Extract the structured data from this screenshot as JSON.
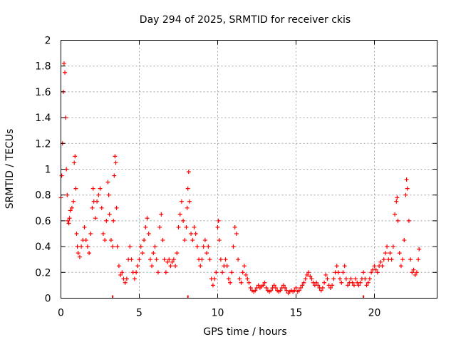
{
  "chart_data": {
    "type": "scatter",
    "title": "Day 294 of 2025, SRMTID for receiver ckis",
    "xlabel": "GPS time / hours",
    "ylabel": "SRMTID / TECUs",
    "xlim": [
      0,
      24
    ],
    "ylim": [
      0,
      2
    ],
    "xticks": [
      0,
      5,
      10,
      15,
      20
    ],
    "yticks": [
      0,
      0.2,
      0.4,
      0.6,
      0.8,
      1,
      1.2,
      1.4,
      1.6,
      1.8,
      2
    ],
    "xtick_labels": [
      "0",
      "5",
      "10",
      "15",
      "20"
    ],
    "ytick_labels": [
      "0",
      "0.2",
      "0.4",
      "0.6",
      "0.8",
      "1",
      "1.2",
      "1.4",
      "1.6",
      "1.8",
      "2"
    ],
    "grid": true,
    "marker": "+",
    "color": "#ff0000",
    "series": [
      {
        "name": "ckis",
        "points": [
          [
            0.0,
            0.78
          ],
          [
            0.05,
            0.95
          ],
          [
            0.1,
            1.2
          ],
          [
            0.15,
            1.6
          ],
          [
            0.2,
            1.82
          ],
          [
            0.25,
            1.75
          ],
          [
            0.3,
            1.4
          ],
          [
            0.35,
            1.0
          ],
          [
            0.4,
            0.8
          ],
          [
            0.45,
            0.6
          ],
          [
            0.5,
            0.58
          ],
          [
            0.55,
            0.62
          ],
          [
            0.6,
            0.68
          ],
          [
            0.7,
            0.7
          ],
          [
            0.8,
            0.75
          ],
          [
            0.85,
            1.05
          ],
          [
            0.9,
            1.1
          ],
          [
            0.95,
            0.85
          ],
          [
            1.0,
            0.5
          ],
          [
            1.05,
            0.4
          ],
          [
            1.1,
            0.35
          ],
          [
            1.2,
            0.32
          ],
          [
            1.3,
            0.4
          ],
          [
            1.4,
            0.45
          ],
          [
            1.5,
            0.55
          ],
          [
            1.6,
            0.45
          ],
          [
            1.7,
            0.4
          ],
          [
            1.8,
            0.35
          ],
          [
            1.9,
            0.5
          ],
          [
            2.0,
            0.7
          ],
          [
            2.05,
            0.85
          ],
          [
            2.1,
            0.75
          ],
          [
            2.2,
            0.62
          ],
          [
            2.3,
            0.75
          ],
          [
            2.4,
            0.8
          ],
          [
            2.5,
            0.85
          ],
          [
            2.6,
            0.7
          ],
          [
            2.7,
            0.5
          ],
          [
            2.8,
            0.45
          ],
          [
            2.9,
            0.6
          ],
          [
            3.0,
            0.9
          ],
          [
            3.05,
            0.8
          ],
          [
            3.1,
            0.65
          ],
          [
            3.2,
            0.45
          ],
          [
            3.3,
            0.4
          ],
          [
            3.35,
            0.6
          ],
          [
            3.4,
            0.95
          ],
          [
            3.45,
            1.1
          ],
          [
            3.5,
            1.05
          ],
          [
            3.55,
            0.7
          ],
          [
            3.6,
            0.4
          ],
          [
            3.7,
            0.25
          ],
          [
            3.8,
            0.18
          ],
          [
            3.9,
            0.2
          ],
          [
            4.0,
            0.15
          ],
          [
            4.1,
            0.12
          ],
          [
            4.2,
            0.15
          ],
          [
            4.3,
            0.3
          ],
          [
            4.4,
            0.4
          ],
          [
            4.5,
            0.3
          ],
          [
            4.6,
            0.2
          ],
          [
            4.7,
            0.15
          ],
          [
            4.8,
            0.2
          ],
          [
            4.9,
            0.25
          ],
          [
            5.0,
            0.3
          ],
          [
            5.1,
            0.4
          ],
          [
            5.2,
            0.35
          ],
          [
            5.3,
            0.45
          ],
          [
            5.4,
            0.55
          ],
          [
            5.5,
            0.62
          ],
          [
            5.6,
            0.5
          ],
          [
            5.7,
            0.3
          ],
          [
            5.8,
            0.25
          ],
          [
            5.9,
            0.35
          ],
          [
            6.0,
            0.4
          ],
          [
            6.1,
            0.3
          ],
          [
            6.2,
            0.2
          ],
          [
            6.3,
            0.55
          ],
          [
            6.4,
            0.65
          ],
          [
            6.5,
            0.45
          ],
          [
            6.6,
            0.3
          ],
          [
            6.7,
            0.2
          ],
          [
            6.8,
            0.28
          ],
          [
            6.9,
            0.3
          ],
          [
            7.0,
            0.25
          ],
          [
            7.1,
            0.28
          ],
          [
            7.2,
            0.3
          ],
          [
            7.3,
            0.25
          ],
          [
            7.4,
            0.35
          ],
          [
            7.5,
            0.55
          ],
          [
            7.6,
            0.65
          ],
          [
            7.7,
            0.75
          ],
          [
            7.8,
            0.6
          ],
          [
            7.9,
            0.45
          ],
          [
            8.0,
            0.55
          ],
          [
            8.05,
            0.7
          ],
          [
            8.1,
            0.85
          ],
          [
            8.15,
            0.98
          ],
          [
            8.2,
            0.75
          ],
          [
            8.3,
            0.5
          ],
          [
            8.4,
            0.45
          ],
          [
            8.5,
            0.55
          ],
          [
            8.6,
            0.5
          ],
          [
            8.7,
            0.4
          ],
          [
            8.8,
            0.3
          ],
          [
            8.9,
            0.25
          ],
          [
            9.0,
            0.3
          ],
          [
            9.1,
            0.4
          ],
          [
            9.2,
            0.45
          ],
          [
            9.3,
            0.35
          ],
          [
            9.4,
            0.4
          ],
          [
            9.5,
            0.3
          ],
          [
            9.6,
            0.15
          ],
          [
            9.7,
            0.1
          ],
          [
            9.8,
            0.15
          ],
          [
            9.9,
            0.2
          ],
          [
            10.0,
            0.55
          ],
          [
            10.05,
            0.6
          ],
          [
            10.1,
            0.45
          ],
          [
            10.2,
            0.3
          ],
          [
            10.3,
            0.2
          ],
          [
            10.4,
            0.25
          ],
          [
            10.5,
            0.3
          ],
          [
            10.6,
            0.25
          ],
          [
            10.7,
            0.15
          ],
          [
            10.8,
            0.12
          ],
          [
            10.9,
            0.2
          ],
          [
            11.0,
            0.4
          ],
          [
            11.1,
            0.55
          ],
          [
            11.2,
            0.5
          ],
          [
            11.3,
            0.3
          ],
          [
            11.4,
            0.15
          ],
          [
            11.5,
            0.12
          ],
          [
            11.6,
            0.2
          ],
          [
            11.7,
            0.25
          ],
          [
            11.8,
            0.18
          ],
          [
            11.9,
            0.15
          ],
          [
            12.0,
            0.12
          ],
          [
            12.1,
            0.08
          ],
          [
            12.2,
            0.06
          ],
          [
            12.3,
            0.05
          ],
          [
            12.4,
            0.06
          ],
          [
            12.5,
            0.08
          ],
          [
            12.6,
            0.1
          ],
          [
            12.7,
            0.08
          ],
          [
            12.8,
            0.09
          ],
          [
            12.9,
            0.1
          ],
          [
            13.0,
            0.12
          ],
          [
            13.1,
            0.08
          ],
          [
            13.2,
            0.06
          ],
          [
            13.3,
            0.05
          ],
          [
            13.4,
            0.06
          ],
          [
            13.5,
            0.08
          ],
          [
            13.6,
            0.1
          ],
          [
            13.7,
            0.08
          ],
          [
            13.8,
            0.06
          ],
          [
            13.9,
            0.05
          ],
          [
            14.0,
            0.06
          ],
          [
            14.1,
            0.08
          ],
          [
            14.2,
            0.1
          ],
          [
            14.3,
            0.08
          ],
          [
            14.4,
            0.06
          ],
          [
            14.5,
            0.04
          ],
          [
            14.6,
            0.05
          ],
          [
            14.7,
            0.06
          ],
          [
            14.8,
            0.05
          ],
          [
            14.9,
            0.06
          ],
          [
            15.0,
            0.08
          ],
          [
            15.1,
            0.05
          ],
          [
            15.2,
            0.06
          ],
          [
            15.3,
            0.08
          ],
          [
            15.4,
            0.1
          ],
          [
            15.5,
            0.12
          ],
          [
            15.6,
            0.15
          ],
          [
            15.7,
            0.18
          ],
          [
            15.8,
            0.2
          ],
          [
            15.9,
            0.17
          ],
          [
            16.0,
            0.15
          ],
          [
            16.1,
            0.12
          ],
          [
            16.2,
            0.1
          ],
          [
            16.3,
            0.12
          ],
          [
            16.4,
            0.1
          ],
          [
            16.5,
            0.08
          ],
          [
            16.6,
            0.06
          ],
          [
            16.7,
            0.08
          ],
          [
            16.8,
            0.12
          ],
          [
            16.9,
            0.18
          ],
          [
            17.0,
            0.15
          ],
          [
            17.1,
            0.1
          ],
          [
            17.2,
            0.08
          ],
          [
            17.3,
            0.1
          ],
          [
            17.4,
            0.15
          ],
          [
            17.5,
            0.2
          ],
          [
            17.6,
            0.25
          ],
          [
            17.7,
            0.2
          ],
          [
            17.8,
            0.15
          ],
          [
            17.9,
            0.12
          ],
          [
            18.0,
            0.2
          ],
          [
            18.1,
            0.25
          ],
          [
            18.2,
            0.15
          ],
          [
            18.3,
            0.1
          ],
          [
            18.4,
            0.12
          ],
          [
            18.5,
            0.15
          ],
          [
            18.6,
            0.12
          ],
          [
            18.7,
            0.1
          ],
          [
            18.8,
            0.15
          ],
          [
            18.9,
            0.12
          ],
          [
            19.0,
            0.1
          ],
          [
            19.1,
            0.12
          ],
          [
            19.2,
            0.15
          ],
          [
            19.3,
            0.2
          ],
          [
            19.4,
            0.15
          ],
          [
            19.5,
            0.1
          ],
          [
            19.6,
            0.12
          ],
          [
            19.7,
            0.15
          ],
          [
            19.8,
            0.2
          ],
          [
            19.9,
            0.22
          ],
          [
            20.0,
            0.25
          ],
          [
            20.1,
            0.22
          ],
          [
            20.2,
            0.2
          ],
          [
            20.3,
            0.25
          ],
          [
            20.4,
            0.28
          ],
          [
            20.5,
            0.25
          ],
          [
            20.6,
            0.3
          ],
          [
            20.7,
            0.35
          ],
          [
            20.8,
            0.4
          ],
          [
            20.9,
            0.3
          ],
          [
            21.0,
            0.35
          ],
          [
            21.1,
            0.3
          ],
          [
            21.2,
            0.4
          ],
          [
            21.3,
            0.65
          ],
          [
            21.4,
            0.75
          ],
          [
            21.45,
            0.78
          ],
          [
            21.5,
            0.6
          ],
          [
            21.6,
            0.35
          ],
          [
            21.7,
            0.25
          ],
          [
            21.8,
            0.3
          ],
          [
            21.9,
            0.45
          ],
          [
            22.0,
            0.8
          ],
          [
            22.05,
            0.92
          ],
          [
            22.1,
            0.85
          ],
          [
            22.2,
            0.6
          ],
          [
            22.3,
            0.3
          ],
          [
            22.4,
            0.2
          ],
          [
            22.5,
            0.22
          ],
          [
            22.6,
            0.18
          ],
          [
            22.7,
            0.2
          ],
          [
            22.8,
            0.3
          ],
          [
            22.85,
            0.38
          ]
        ]
      }
    ],
    "axis_marks_x": [
      3.3,
      8.1,
      19.3
    ]
  }
}
